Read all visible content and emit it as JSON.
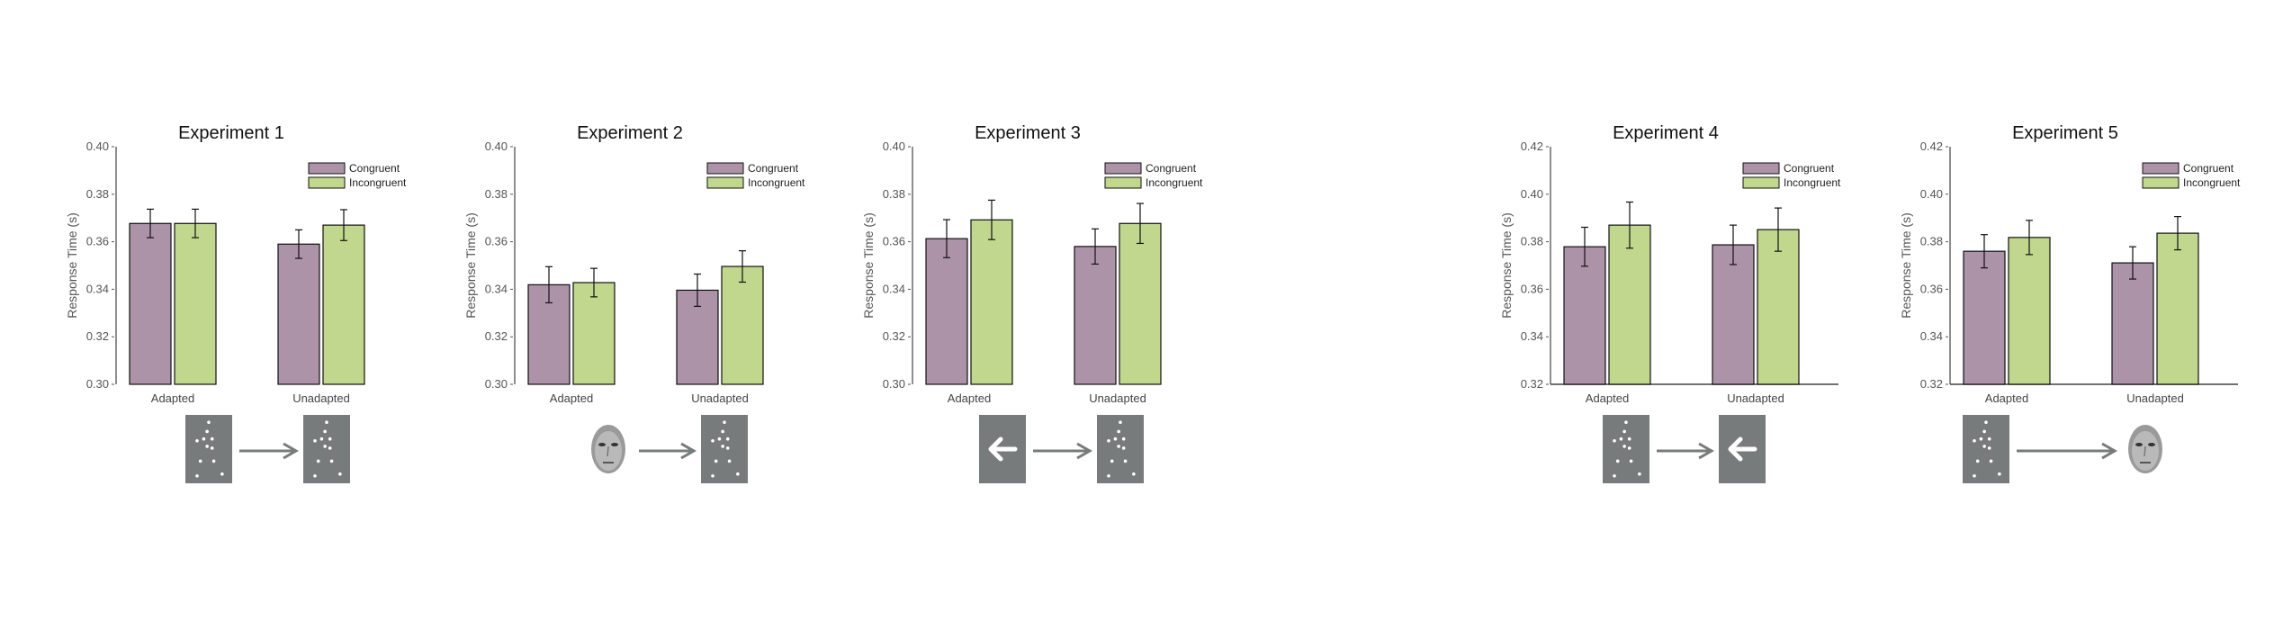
{
  "colors": {
    "congruent": "#ad93a8",
    "incongruent": "#c0d78d",
    "stimulus_bg": "#787b7b",
    "arrow": "#787b7b"
  },
  "legend": [
    "Congruent",
    "Incongruent"
  ],
  "chart_data": [
    {
      "type": "bar",
      "title": "Experiment 1",
      "ylabel": "Response Time (s)",
      "ylim": [
        0.3,
        0.4
      ],
      "yticks": [
        "0.30",
        "0.32",
        "0.34",
        "0.36",
        "0.38",
        "0.40"
      ],
      "x_axis_line": false,
      "categories": [
        "Adapted",
        "Unadapted"
      ],
      "series": [
        {
          "name": "Congruent",
          "values": [
            0.3677,
            0.359
          ],
          "errors": [
            0.006,
            0.006
          ]
        },
        {
          "name": "Incongruent",
          "values": [
            0.3677,
            0.367
          ],
          "errors": [
            0.006,
            0.0065
          ]
        }
      ],
      "stimuli": [
        "dots",
        "dots"
      ],
      "legend": "top-right"
    },
    {
      "type": "bar",
      "title": "Experiment 2",
      "ylabel": "Response Time (s)",
      "ylim": [
        0.3,
        0.4
      ],
      "yticks": [
        "0.30",
        "0.32",
        "0.34",
        "0.36",
        "0.38",
        "0.40"
      ],
      "x_axis_line": false,
      "categories": [
        "Adapted",
        "Unadapted"
      ],
      "series": [
        {
          "name": "Congruent",
          "values": [
            0.3419,
            0.3396
          ],
          "errors": [
            0.0076,
            0.0068
          ]
        },
        {
          "name": "Incongruent",
          "values": [
            0.3428,
            0.3496
          ],
          "errors": [
            0.006,
            0.0066
          ]
        }
      ],
      "stimuli": [
        "face",
        "dots"
      ],
      "legend": "top-right"
    },
    {
      "type": "bar",
      "title": "Experiment 3",
      "ylabel": "Response Time (s)",
      "ylim": [
        0.3,
        0.4
      ],
      "yticks": [
        "0.30",
        "0.32",
        "0.34",
        "0.36",
        "0.38",
        "0.40"
      ],
      "x_axis_line": false,
      "categories": [
        "Adapted",
        "Unadapted"
      ],
      "series": [
        {
          "name": "Congruent",
          "values": [
            0.3613,
            0.358
          ],
          "errors": [
            0.008,
            0.0074
          ]
        },
        {
          "name": "Incongruent",
          "values": [
            0.3692,
            0.3677
          ],
          "errors": [
            0.0083,
            0.0084
          ]
        }
      ],
      "stimuli": [
        "arrow",
        "dots"
      ],
      "legend": "top-right"
    },
    {
      "type": "bar",
      "title": "Experiment 4",
      "ylabel": "Response Time (s)",
      "ylim": [
        0.32,
        0.42
      ],
      "yticks": [
        "0.32",
        "0.34",
        "0.36",
        "0.38",
        "0.40",
        "0.42"
      ],
      "x_axis_line": true,
      "categories": [
        "Adapted",
        "Unadapted"
      ],
      "series": [
        {
          "name": "Congruent",
          "values": [
            0.3779,
            0.3787
          ],
          "errors": [
            0.0082,
            0.0083
          ]
        },
        {
          "name": "Incongruent",
          "values": [
            0.387,
            0.3851
          ],
          "errors": [
            0.0097,
            0.0091
          ]
        }
      ],
      "stimuli": [
        "dots",
        "arrow"
      ],
      "legend": "top-right"
    },
    {
      "type": "bar",
      "title": "Experiment 5",
      "ylabel": "Response Time (s)",
      "ylim": [
        0.32,
        0.42
      ],
      "yticks": [
        "0.32",
        "0.34",
        "0.36",
        "0.38",
        "0.40",
        "0.42"
      ],
      "x_axis_line": true,
      "categories": [
        "Adapted",
        "Unadapted"
      ],
      "series": [
        {
          "name": "Congruent",
          "values": [
            0.376,
            0.3711
          ],
          "errors": [
            0.007,
            0.0068
          ]
        },
        {
          "name": "Incongruent",
          "values": [
            0.3818,
            0.3836
          ],
          "errors": [
            0.0072,
            0.007
          ]
        }
      ],
      "stimuli": [
        "dots",
        "face"
      ],
      "legend": "top-right"
    }
  ]
}
